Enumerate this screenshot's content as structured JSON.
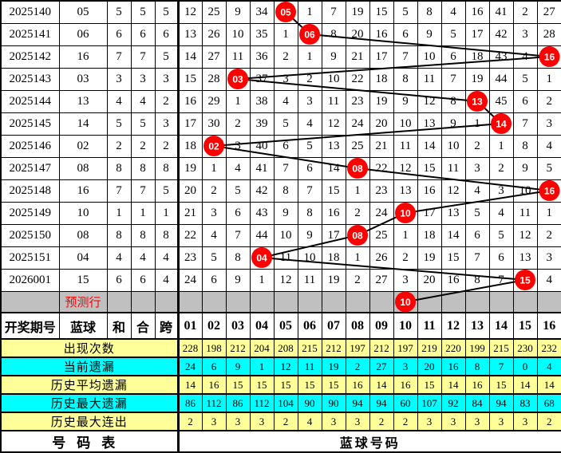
{
  "labels": {
    "prediction": "预测行",
    "period_header": "开奖期号",
    "blue_header": "蓝球",
    "sum_header": "和",
    "he_header": "合",
    "span_header": "跨",
    "footer_left": "号码表",
    "footer_right": "蓝球号码"
  },
  "colors": {
    "grid_bg": "#ccffff",
    "prediction_bg": "#c0c0c0",
    "stats_yellow": "#ffff99",
    "stats_cyan": "#00ffff",
    "marker_red": "#ff0000",
    "marker_text": "#ffffff",
    "blue_text": "#0000ff",
    "prediction_text": "#ff0000",
    "line": "#000000"
  },
  "chart_data": {
    "type": "table",
    "columns": [
      "01",
      "02",
      "03",
      "04",
      "05",
      "06",
      "07",
      "08",
      "09",
      "10",
      "11",
      "12",
      "13",
      "14",
      "15",
      "16"
    ],
    "rows": [
      {
        "period": "2025140",
        "blue": "05",
        "sum": 5,
        "he": 5,
        "span": 5,
        "ball_col": 5,
        "omissions": [
          12,
          25,
          9,
          34,
          null,
          1,
          7,
          19,
          15,
          5,
          8,
          4,
          16,
          41,
          2,
          27
        ]
      },
      {
        "period": "2025141",
        "blue": "06",
        "sum": 6,
        "he": 6,
        "span": 6,
        "ball_col": 6,
        "omissions": [
          13,
          26,
          10,
          35,
          1,
          null,
          8,
          20,
          16,
          6,
          9,
          5,
          17,
          42,
          3,
          28
        ]
      },
      {
        "period": "2025142",
        "blue": "16",
        "sum": 7,
        "he": 7,
        "span": 5,
        "ball_col": 16,
        "omissions": [
          14,
          27,
          11,
          36,
          2,
          1,
          9,
          21,
          17,
          7,
          10,
          6,
          18,
          43,
          4,
          null
        ]
      },
      {
        "period": "2025143",
        "blue": "03",
        "sum": 3,
        "he": 3,
        "span": 3,
        "ball_col": 3,
        "omissions": [
          15,
          28,
          null,
          37,
          3,
          2,
          10,
          22,
          18,
          8,
          11,
          7,
          19,
          44,
          5,
          1
        ]
      },
      {
        "period": "2025144",
        "blue": "13",
        "sum": 4,
        "he": 4,
        "span": 2,
        "ball_col": 13,
        "omissions": [
          16,
          29,
          1,
          38,
          4,
          3,
          11,
          23,
          19,
          9,
          12,
          8,
          null,
          45,
          6,
          2
        ]
      },
      {
        "period": "2025145",
        "blue": "14",
        "sum": 5,
        "he": 5,
        "span": 3,
        "ball_col": 14,
        "omissions": [
          17,
          30,
          2,
          39,
          5,
          4,
          12,
          24,
          20,
          10,
          13,
          9,
          1,
          null,
          7,
          3
        ]
      },
      {
        "period": "2025146",
        "blue": "02",
        "sum": 2,
        "he": 2,
        "span": 2,
        "ball_col": 2,
        "omissions": [
          18,
          null,
          3,
          40,
          6,
          5,
          13,
          25,
          21,
          11,
          14,
          10,
          2,
          1,
          8,
          4
        ]
      },
      {
        "period": "2025147",
        "blue": "08",
        "sum": 8,
        "he": 8,
        "span": 8,
        "ball_col": 8,
        "omissions": [
          19,
          1,
          4,
          41,
          7,
          6,
          14,
          null,
          22,
          12,
          15,
          11,
          3,
          2,
          9,
          5
        ]
      },
      {
        "period": "2025148",
        "blue": "16",
        "sum": 7,
        "he": 7,
        "span": 5,
        "ball_col": 16,
        "omissions": [
          20,
          2,
          5,
          42,
          8,
          7,
          15,
          1,
          23,
          13,
          16,
          12,
          4,
          3,
          10,
          null
        ]
      },
      {
        "period": "2025149",
        "blue": "10",
        "sum": 1,
        "he": 1,
        "span": 1,
        "ball_col": 10,
        "omissions": [
          21,
          3,
          6,
          43,
          9,
          8,
          16,
          2,
          24,
          null,
          17,
          13,
          5,
          4,
          11,
          1
        ]
      },
      {
        "period": "2025150",
        "blue": "08",
        "sum": 8,
        "he": 8,
        "span": 8,
        "ball_col": 8,
        "omissions": [
          22,
          4,
          7,
          44,
          10,
          9,
          17,
          null,
          25,
          1,
          18,
          14,
          6,
          5,
          12,
          2
        ]
      },
      {
        "period": "2025151",
        "blue": "04",
        "sum": 4,
        "he": 4,
        "span": 4,
        "ball_col": 4,
        "omissions": [
          23,
          5,
          8,
          null,
          11,
          10,
          18,
          1,
          26,
          2,
          19,
          15,
          7,
          6,
          13,
          3
        ]
      },
      {
        "period": "2026001",
        "blue": "15",
        "sum": 6,
        "he": 6,
        "span": 4,
        "ball_col": 15,
        "omissions": [
          24,
          6,
          9,
          1,
          12,
          11,
          19,
          2,
          27,
          3,
          20,
          16,
          8,
          7,
          null,
          4
        ]
      }
    ],
    "prediction_ball": "10",
    "prediction_column": 10,
    "stats": [
      {
        "label": "出现次数",
        "bg": "yellow",
        "values": [
          228,
          198,
          212,
          204,
          208,
          215,
          212,
          197,
          212,
          197,
          219,
          220,
          199,
          215,
          230,
          232
        ]
      },
      {
        "label": "当前遗漏",
        "bg": "cyan",
        "values": [
          24,
          6,
          9,
          1,
          12,
          11,
          19,
          2,
          27,
          3,
          20,
          16,
          8,
          7,
          0,
          4
        ]
      },
      {
        "label": "历史平均遗漏",
        "bg": "yellow",
        "values": [
          14,
          16,
          15,
          15,
          15,
          15,
          15,
          16,
          14,
          16,
          15,
          14,
          16,
          15,
          14,
          14
        ]
      },
      {
        "label": "历史最大遗漏",
        "bg": "cyan",
        "values": [
          86,
          112,
          86,
          112,
          104,
          90,
          90,
          94,
          94,
          60,
          107,
          92,
          84,
          94,
          83,
          68
        ]
      },
      {
        "label": "历史最大连出",
        "bg": "yellow",
        "values": [
          2,
          3,
          3,
          3,
          2,
          4,
          3,
          3,
          2,
          2,
          3,
          3,
          3,
          3,
          3,
          2
        ]
      }
    ]
  }
}
